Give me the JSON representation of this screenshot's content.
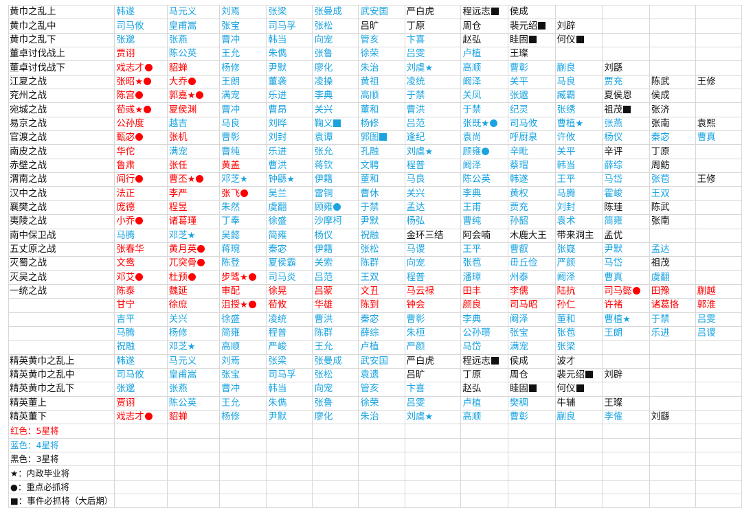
{
  "colors": {
    "red": "#ff0000",
    "blue": "#1aa3e0",
    "black": "#111111",
    "grid": "#d7d7d7"
  },
  "mark_legend": {
    "★": "star",
    "●": "dot",
    "■": "square"
  },
  "rows": [
    {
      "label": "黄巾之乱上",
      "cells": [
        "b|韩遂",
        "b|马元义",
        "b|刘焉",
        "b|张梁",
        "b|张曼成",
        "b|武安国",
        "k|严白虎",
        "k|程远志■",
        "k|侯成"
      ]
    },
    {
      "label": "黄巾之乱中",
      "cells": [
        "b|司马攸",
        "b|皇甫嵩",
        "b|张宝",
        "b|司马孚",
        "b|张松",
        "k|吕旷",
        "k|丁原",
        "k|周仓",
        "k|裴元绍■",
        "k|刘辟"
      ]
    },
    {
      "label": "黄巾之乱下",
      "cells": [
        "b|张邈",
        "b|张燕",
        "b|曹冲",
        "b|韩当",
        "b|向宠",
        "b|管亥",
        "b|卞喜",
        "k|赵弘",
        "k|眭固■",
        "k|何仪■"
      ]
    },
    {
      "label": "董卓讨伐战上",
      "cells": [
        "r|贾诩",
        "b|陈公英",
        "b|王允",
        "b|朱儁",
        "b|张鲁",
        "b|徐荣",
        "b|吕雯",
        "b|卢植",
        "k|王璨"
      ]
    },
    {
      "label": "董卓讨伐战下",
      "cells": [
        "r|戏志才●",
        "r|貂蝉",
        "b|杨修",
        "b|尹默",
        "b|廖化",
        "b|朱治",
        "b|刘虞★",
        "b|高顺",
        "b|曹彰",
        "b|蒯良",
        "k|刘繇"
      ]
    },
    {
      "label": "江夏之战",
      "cells": [
        "r|张昭★●",
        "r|大乔●",
        "b|王朗",
        "b|董袭",
        "b|凌操",
        "b|黄祖",
        "b|凌统",
        "b|阚泽",
        "b|关平",
        "b|马良",
        "b|贾充",
        "k|陈武",
        "k|王修"
      ]
    },
    {
      "label": "兖州之战",
      "cells": [
        "r|陈宫●",
        "r|郭嘉★●",
        "b|满宠",
        "b|乐进",
        "b|李典",
        "b|高顺",
        "b|于禁",
        "b|关凤",
        "b|张邈",
        "b|臧霸",
        "k|夏侯恩",
        "k|侯成"
      ]
    },
    {
      "label": "宛城之战",
      "cells": [
        "r|荀彧★●",
        "r|夏侯渊",
        "b|曹冲",
        "b|曹昂",
        "b|关兴",
        "b|董和",
        "b|曹洪",
        "b|于禁",
        "b|纪灵",
        "b|张绣",
        "k|祖茂■",
        "k|张济"
      ]
    },
    {
      "label": "易京之战",
      "cells": [
        "r|公孙度",
        "b|越吉",
        "b|马良",
        "b|刘晔",
        "b|鞠义■",
        "b|杨修",
        "b|吕范",
        "b|张既★●",
        "b|司马攸",
        "b|曹植★",
        "b|张燕",
        "k|张南",
        "k|袁熙"
      ]
    },
    {
      "label": "官渡之战",
      "cells": [
        "r|甄宓●",
        "r|张机",
        "b|曹彰",
        "b|刘封",
        "b|袁谭",
        "b|郭图■",
        "b|逢纪",
        "b|袁尚",
        "b|呼厨泉",
        "b|许攸",
        "b|杨仪",
        "b|秦宓",
        "b|曹真"
      ]
    },
    {
      "label": "南皮之战",
      "cells": [
        "r|华佗",
        "b|满宠",
        "b|曹纯",
        "b|乐进",
        "b|张允",
        "b|孔融",
        "b|刘虞★",
        "b|顾雍●",
        "b|辛毗",
        "b|关平",
        "k|辛评",
        "k|丁原"
      ]
    },
    {
      "label": "赤壁之战",
      "cells": [
        "r|鲁肃",
        "r|张任",
        "r|黄盖",
        "b|曹洪",
        "b|蒋钦",
        "b|文聘",
        "b|程普",
        "b|阚泽",
        "b|蔡瑁",
        "b|韩当",
        "b|薛综",
        "k|周鲂"
      ]
    },
    {
      "label": "渭南之战",
      "cells": [
        "r|阎行●",
        "r|曹丕★●",
        "b|邓芝★",
        "b|钟繇★",
        "b|伊籍",
        "b|董和",
        "b|马良",
        "b|陈公英",
        "b|韩遂",
        "b|王平",
        "b|马岱",
        "b|张苞",
        "k|王修"
      ]
    },
    {
      "label": "汉中之战",
      "cells": [
        "r|法正",
        "r|李严",
        "r|张飞●",
        "b|吴兰",
        "b|雷铜",
        "b|曹休",
        "b|关兴",
        "b|李典",
        "b|黄权",
        "b|马腾",
        "b|霍峻",
        "b|王双"
      ]
    },
    {
      "label": "襄樊之战",
      "cells": [
        "r|庞德",
        "r|程昱",
        "b|朱然",
        "b|虞翻",
        "b|顾雍●",
        "b|于禁",
        "b|孟达",
        "b|王甫",
        "b|贾充",
        "b|刘封",
        "k|陈珪",
        "k|陈武"
      ]
    },
    {
      "label": "夷陵之战",
      "cells": [
        "r|小乔●",
        "r|诸葛瑾",
        "b|丁奉",
        "b|徐盛",
        "b|沙摩柯",
        "b|尹默",
        "b|杨弘",
        "b|曹纯",
        "b|孙韶",
        "b|袁术",
        "b|简雍",
        "k|张南"
      ]
    },
    {
      "label": "南中保卫战",
      "cells": [
        "b|马腾",
        "b|邓芝★",
        "b|吴懿",
        "b|简雍",
        "b|杨仪",
        "b|祝融",
        "k|金环三结",
        "k|阿会喃",
        "k|木鹿大王",
        "k|带来洞主",
        "k|孟优"
      ]
    },
    {
      "label": "五丈原之战",
      "cells": [
        "r|张春华",
        "r|黄月英●",
        "b|蒋琬",
        "b|秦宓",
        "b|伊籍",
        "b|张松",
        "b|马谡",
        "b|王平",
        "b|曹叡",
        "b|张嶷",
        "b|尹默",
        "b|孟达"
      ]
    },
    {
      "label": "灭蜀之战",
      "cells": [
        "r|文鸯",
        "r|兀突骨●",
        "b|陈登",
        "b|夏侯霸",
        "b|关索",
        "b|陈群",
        "b|向宠",
        "b|张苞",
        "b|毌丘俭",
        "b|严颜",
        "b|马岱",
        "k|祖茂"
      ]
    },
    {
      "label": "灭吴之战",
      "cells": [
        "r|邓艾●",
        "r|杜预●",
        "r|步骘★●",
        "b|司马炎",
        "b|吕范",
        "b|王双",
        "b|程普",
        "b|潘璋",
        "b|州泰",
        "b|阚泽",
        "b|曹真",
        "b|虞翻"
      ]
    },
    {
      "label": "一统之战",
      "cells": [
        "r|陈泰",
        "r|魏延",
        "r|审配",
        "r|徐晃",
        "r|吕蒙",
        "r|文丑",
        "r|马云禄",
        "r|田丰",
        "r|李儒",
        "r|陆抗",
        "r|司马懿●",
        "r|田豫",
        "r|蒯越"
      ]
    },
    {
      "label": "",
      "cells": [
        "r|甘宁",
        "r|徐庶",
        "r|沮授★●",
        "r|荀攸",
        "r|华雄",
        "r|陈到",
        "r|钟会",
        "r|颜良",
        "r|司马昭",
        "r|孙仁",
        "r|许褚",
        "r|诸葛恪",
        "r|郭淮"
      ]
    },
    {
      "label": "",
      "cells": [
        "b|吉平",
        "b|关兴",
        "b|徐盛",
        "b|凌统",
        "b|曹洪",
        "b|秦宓",
        "b|曹彰",
        "b|李典",
        "b|阚泽",
        "b|董和",
        "b|曹植★",
        "b|于禁",
        "b|吕雯"
      ]
    },
    {
      "label": "",
      "cells": [
        "b|马腾",
        "b|杨修",
        "b|简雍",
        "b|程普",
        "b|陈群",
        "b|薛综",
        "b|朱桓",
        "b|公孙瓒",
        "b|张宝",
        "b|张苞",
        "b|王朗",
        "b|乐进",
        "b|吕谡"
      ]
    },
    {
      "label": "",
      "cells": [
        "b|祝融",
        "b|邓芝★",
        "b|高顺",
        "b|严峻",
        "b|王允",
        "b|卢植",
        "b|严颜",
        "b|马岱",
        "b|满宠",
        "b|张梁"
      ]
    },
    {
      "label": "精英黄巾之乱上",
      "cells": [
        "b|韩遂",
        "b|马元义",
        "b|刘焉",
        "b|张梁",
        "b|张曼成",
        "b|武安国",
        "k|严白虎",
        "k|程远志■",
        "k|侯成",
        "k|波才"
      ]
    },
    {
      "label": "精英黄巾之乱中",
      "cells": [
        "b|司马攸",
        "b|皇甫嵩",
        "b|张宝",
        "b|司马孚",
        "b|张松",
        "b|袁遗",
        "k|吕旷",
        "k|丁原",
        "k|周仓",
        "k|裴元绍■",
        "k|刘辟"
      ]
    },
    {
      "label": "精英黄巾之乱下",
      "cells": [
        "b|张邈",
        "b|张燕",
        "b|曹冲",
        "b|韩当",
        "b|向宠",
        "b|管亥",
        "b|卞喜",
        "k|赵弘",
        "k|眭固■",
        "k|何仪■"
      ]
    },
    {
      "label": "精英董上",
      "cells": [
        "r|贾诩",
        "b|陈公英",
        "b|王允",
        "b|朱儁",
        "b|张鲁",
        "b|徐荣",
        "b|吕雯",
        "b|卢植",
        "b|樊稠",
        "k|牛辅",
        "k|王璨"
      ]
    },
    {
      "label": "精英董下",
      "cells": [
        "r|戏志才●",
        "r|貂蝉",
        "b|杨修",
        "b|尹默",
        "b|廖化",
        "b|朱治",
        "b|刘虞★",
        "b|高顺",
        "b|曹彰",
        "b|蒯良",
        "b|李傕",
        "k|刘繇"
      ]
    }
  ],
  "legend": [
    {
      "text": "红色：5星将",
      "color": "r"
    },
    {
      "text": "蓝色：4星将",
      "color": "b"
    },
    {
      "text": "黑色：3星将",
      "color": "k"
    },
    {
      "text": "★：内政毕业将",
      "color": "k"
    },
    {
      "text": "●：重点必抓将",
      "color": "k"
    },
    {
      "text": "■：事件必抓将（大后期）",
      "color": "k"
    }
  ]
}
